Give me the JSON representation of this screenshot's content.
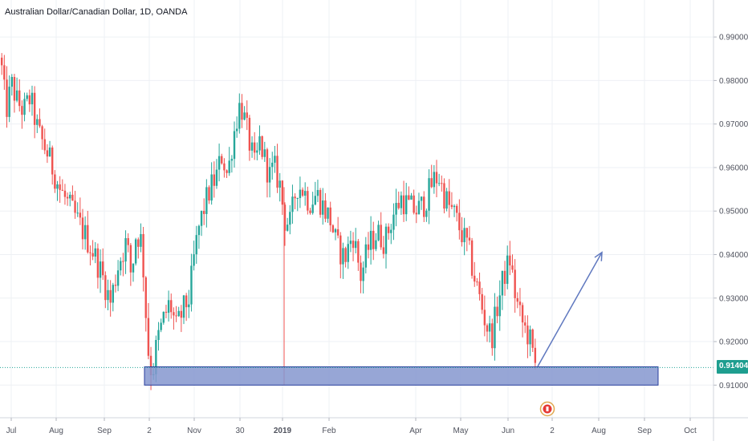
{
  "title": "Australian Dollar/Canadian Dollar, 1D, OANDA",
  "last_price_label": "0.91404",
  "colors": {
    "up": "#26a69a",
    "down": "#ef5350",
    "grid": "#eef0f4",
    "axis_text": "#50535e",
    "zone_fill": "#8596cf",
    "zone_border": "#283e9c",
    "arrow": "#5f78bf",
    "price_line": "#26a69a",
    "event_marker": "#e0a84f",
    "event_flag": "#e53935"
  },
  "icons": {
    "event_marker": "canadian-flag-icon"
  },
  "chart_data": {
    "type": "candlestick",
    "symbol": "AUDCAD",
    "interval": "1D",
    "source": "OANDA",
    "ylim": [
      0.9025,
      0.9985
    ],
    "y_ticks": [
      "0.91000",
      "0.92000",
      "0.93000",
      "0.94000",
      "0.95000",
      "0.96000",
      "0.97000",
      "0.98000",
      "0.99000"
    ],
    "x_tick_labels": [
      "Jul",
      "Aug",
      "Sep",
      "2",
      "Nov",
      "30",
      "2019",
      "Feb",
      "Apr",
      "May",
      "Jun",
      "2",
      "Aug",
      "Sep",
      "Oct"
    ],
    "price_path": [
      [
        0,
        0.987
      ],
      [
        8,
        0.973
      ],
      [
        15,
        0.979
      ],
      [
        22,
        0.975
      ],
      [
        30,
        0.973
      ],
      [
        38,
        0.976
      ],
      [
        48,
        0.968
      ],
      [
        60,
        0.963
      ],
      [
        75,
        0.955
      ],
      [
        90,
        0.95
      ],
      [
        105,
        0.945
      ],
      [
        118,
        0.94
      ],
      [
        128,
        0.935
      ],
      [
        138,
        0.929
      ],
      [
        148,
        0.938
      ],
      [
        158,
        0.943
      ],
      [
        164,
        0.935
      ],
      [
        170,
        0.945
      ],
      [
        177,
        0.943
      ],
      [
        181,
        0.93
      ],
      [
        185,
        0.918
      ],
      [
        190,
        0.912
      ],
      [
        196,
        0.92
      ],
      [
        204,
        0.925
      ],
      [
        212,
        0.929
      ],
      [
        220,
        0.923
      ],
      [
        228,
        0.927
      ],
      [
        236,
        0.93
      ],
      [
        242,
        0.939
      ],
      [
        248,
        0.946
      ],
      [
        255,
        0.951
      ],
      [
        262,
        0.955
      ],
      [
        270,
        0.958
      ],
      [
        277,
        0.963
      ],
      [
        284,
        0.958
      ],
      [
        290,
        0.966
      ],
      [
        295,
        0.971
      ],
      [
        300,
        0.975
      ],
      [
        306,
        0.97
      ],
      [
        312,
        0.965
      ],
      [
        318,
        0.96
      ],
      [
        324,
        0.966
      ],
      [
        330,
        0.962
      ],
      [
        336,
        0.958
      ],
      [
        342,
        0.96
      ],
      [
        349,
        0.956
      ],
      [
        355,
        0.948
      ],
      [
        362,
        0.947
      ],
      [
        370,
        0.956
      ],
      [
        378,
        0.955
      ],
      [
        386,
        0.952
      ],
      [
        395,
        0.954
      ],
      [
        403,
        0.951
      ],
      [
        412,
        0.948
      ],
      [
        420,
        0.942
      ],
      [
        430,
        0.939
      ],
      [
        440,
        0.945
      ],
      [
        450,
        0.935
      ],
      [
        460,
        0.942
      ],
      [
        470,
        0.945
      ],
      [
        480,
        0.943
      ],
      [
        490,
        0.949
      ],
      [
        500,
        0.953
      ],
      [
        510,
        0.951
      ],
      [
        520,
        0.95
      ],
      [
        530,
        0.952
      ],
      [
        540,
        0.957
      ],
      [
        547,
        0.958
      ],
      [
        553,
        0.954
      ],
      [
        560,
        0.951
      ],
      [
        567,
        0.949
      ],
      [
        575,
        0.945
      ],
      [
        583,
        0.942
      ],
      [
        590,
        0.936
      ],
      [
        598,
        0.93
      ],
      [
        606,
        0.924
      ],
      [
        613,
        0.921
      ],
      [
        620,
        0.928
      ],
      [
        628,
        0.935
      ],
      [
        636,
        0.939
      ],
      [
        642,
        0.931
      ],
      [
        648,
        0.926
      ],
      [
        654,
        0.923
      ],
      [
        660,
        0.921
      ],
      [
        664,
        0.917
      ],
      [
        668,
        0.914
      ]
    ],
    "support_zone": {
      "from_x": 180,
      "to_x": 820,
      "price_top": 0.9142,
      "price_bottom": 0.91
    },
    "projection_arrow": {
      "start": [
        670,
        0.9143
      ],
      "end": [
        750,
        0.9405
      ]
    },
    "last_price": 0.91404,
    "event_spike_x": 354,
    "event_marker_x": 682
  }
}
